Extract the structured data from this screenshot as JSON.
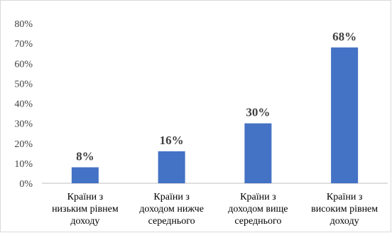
{
  "chart_data": {
    "type": "bar",
    "categories": [
      [
        "Країни з",
        "низьким рівнем",
        "доходу"
      ],
      [
        "Країни з",
        "доходом нижче",
        "середнього"
      ],
      [
        "Країни з",
        "доходом вище",
        "середнього"
      ],
      [
        "Країни з",
        "високим рівнем",
        "доходу"
      ]
    ],
    "values": [
      8,
      16,
      30,
      68
    ],
    "data_labels": [
      "8%",
      "16%",
      "30%",
      "68%"
    ],
    "y_ticks": [
      "0%",
      "10%",
      "20%",
      "30%",
      "40%",
      "50%",
      "60%",
      "70%",
      "80%"
    ],
    "ylim": [
      0,
      80
    ],
    "grid": false,
    "legend": "none",
    "bar_color": "#4472c4",
    "axis_color": "#bfbfbf"
  }
}
